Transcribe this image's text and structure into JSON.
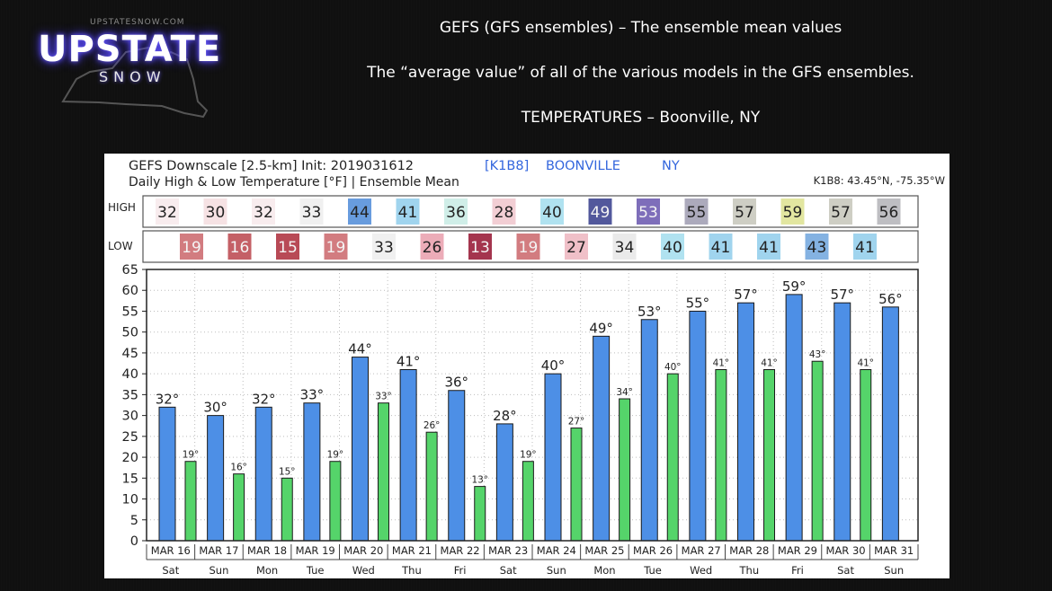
{
  "logo": {
    "small_text": "UPSTATESNOW.COM",
    "main_text": "UPSTATE",
    "sub_text": "SNOW"
  },
  "header": {
    "line1": "GEFS (GFS ensembles) – The ensemble mean values",
    "line2": "The “average value” of all of the various models in the GFS ensembles.",
    "line3": "TEMPERATURES – Boonville, NY"
  },
  "chart_data": {
    "type": "bar",
    "title": "GEFS Downscale [2.5-km] Init: 2019031612",
    "station_id": "[K1B8]",
    "station_name": "BOONVILLE",
    "station_state": "NY",
    "subtitle": "Daily High & Low Temperature [°F] | Ensemble Mean",
    "coords": "K1B8: 43.45°N, -75.35°W",
    "row_label_high": "HIGH",
    "row_label_low": "LOW",
    "categories": [
      "MAR 16",
      "MAR 17",
      "MAR 18",
      "MAR 19",
      "MAR 20",
      "MAR 21",
      "MAR 22",
      "MAR 23",
      "MAR 24",
      "MAR 25",
      "MAR 26",
      "MAR 27",
      "MAR 28",
      "MAR 29",
      "MAR 30",
      "MAR 31"
    ],
    "weekdays": [
      "Sat",
      "Sun",
      "Mon",
      "Tue",
      "Wed",
      "Thu",
      "Fri",
      "Sat",
      "Sun",
      "Mon",
      "Tue",
      "Wed",
      "Thu",
      "Fri",
      "Sat",
      "Sun"
    ],
    "highs": [
      32,
      30,
      32,
      33,
      44,
      41,
      36,
      28,
      40,
      49,
      53,
      55,
      57,
      59,
      57,
      56
    ],
    "lows": [
      19,
      16,
      15,
      19,
      33,
      26,
      13,
      19,
      27,
      34,
      40,
      41,
      41,
      43,
      41
    ],
    "series_colors": {
      "high": "#4d8fe6",
      "low": "#55d46a"
    },
    "ylim": [
      0,
      65
    ],
    "yticks": [
      0,
      5,
      10,
      15,
      20,
      25,
      30,
      35,
      40,
      45,
      50,
      55,
      60,
      65
    ],
    "grid": true
  }
}
